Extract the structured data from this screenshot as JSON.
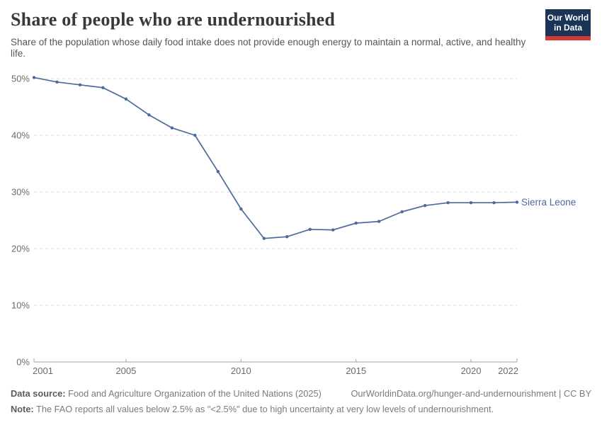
{
  "header": {
    "title": "Share of people who are undernourished",
    "subtitle": "Share of the population whose daily food intake does not provide enough energy to maintain a normal, active, and healthy life.",
    "logo_line1": "Our World",
    "logo_line2": "in Data"
  },
  "chart_data": {
    "type": "line",
    "title": "Share of people who are undernourished",
    "x": [
      2001,
      2002,
      2003,
      2004,
      2005,
      2006,
      2007,
      2008,
      2009,
      2010,
      2011,
      2012,
      2013,
      2014,
      2015,
      2016,
      2017,
      2018,
      2019,
      2020,
      2021,
      2022
    ],
    "series": [
      {
        "name": "Sierra Leone",
        "color": "#4c6a9c",
        "values": [
          50.2,
          49.4,
          48.9,
          48.4,
          46.4,
          43.6,
          41.3,
          40.0,
          33.6,
          27.0,
          21.8,
          22.1,
          23.4,
          23.3,
          24.5,
          24.8,
          26.5,
          27.6,
          28.1,
          28.1,
          28.1,
          28.2
        ]
      }
    ],
    "unit": "%",
    "ylim": [
      0,
      50
    ],
    "yticks": [
      0,
      10,
      20,
      30,
      40,
      50
    ],
    "xticks": [
      2001,
      2005,
      2010,
      2015,
      2020,
      2022
    ],
    "grid": "dashed-horizontal",
    "legend_position": "end-of-line"
  },
  "colors": {
    "line": "#4c6a9c",
    "grid": "#dcdcdc",
    "axis": "#a3a3a3",
    "tick_label": "#6b6b6b",
    "logo_bg": "#1a3457",
    "logo_red": "#d13b33"
  },
  "footer": {
    "source_label": "Data source:",
    "source_text": " Food and Agriculture Organization of the United Nations (2025)",
    "link_text": "OurWorldinData.org/hunger-and-undernourishment | CC BY",
    "note_label": "Note:",
    "note_text": " The FAO reports all values below 2.5% as \"<2.5%\" due to high uncertainty at very low levels of undernourishment."
  }
}
